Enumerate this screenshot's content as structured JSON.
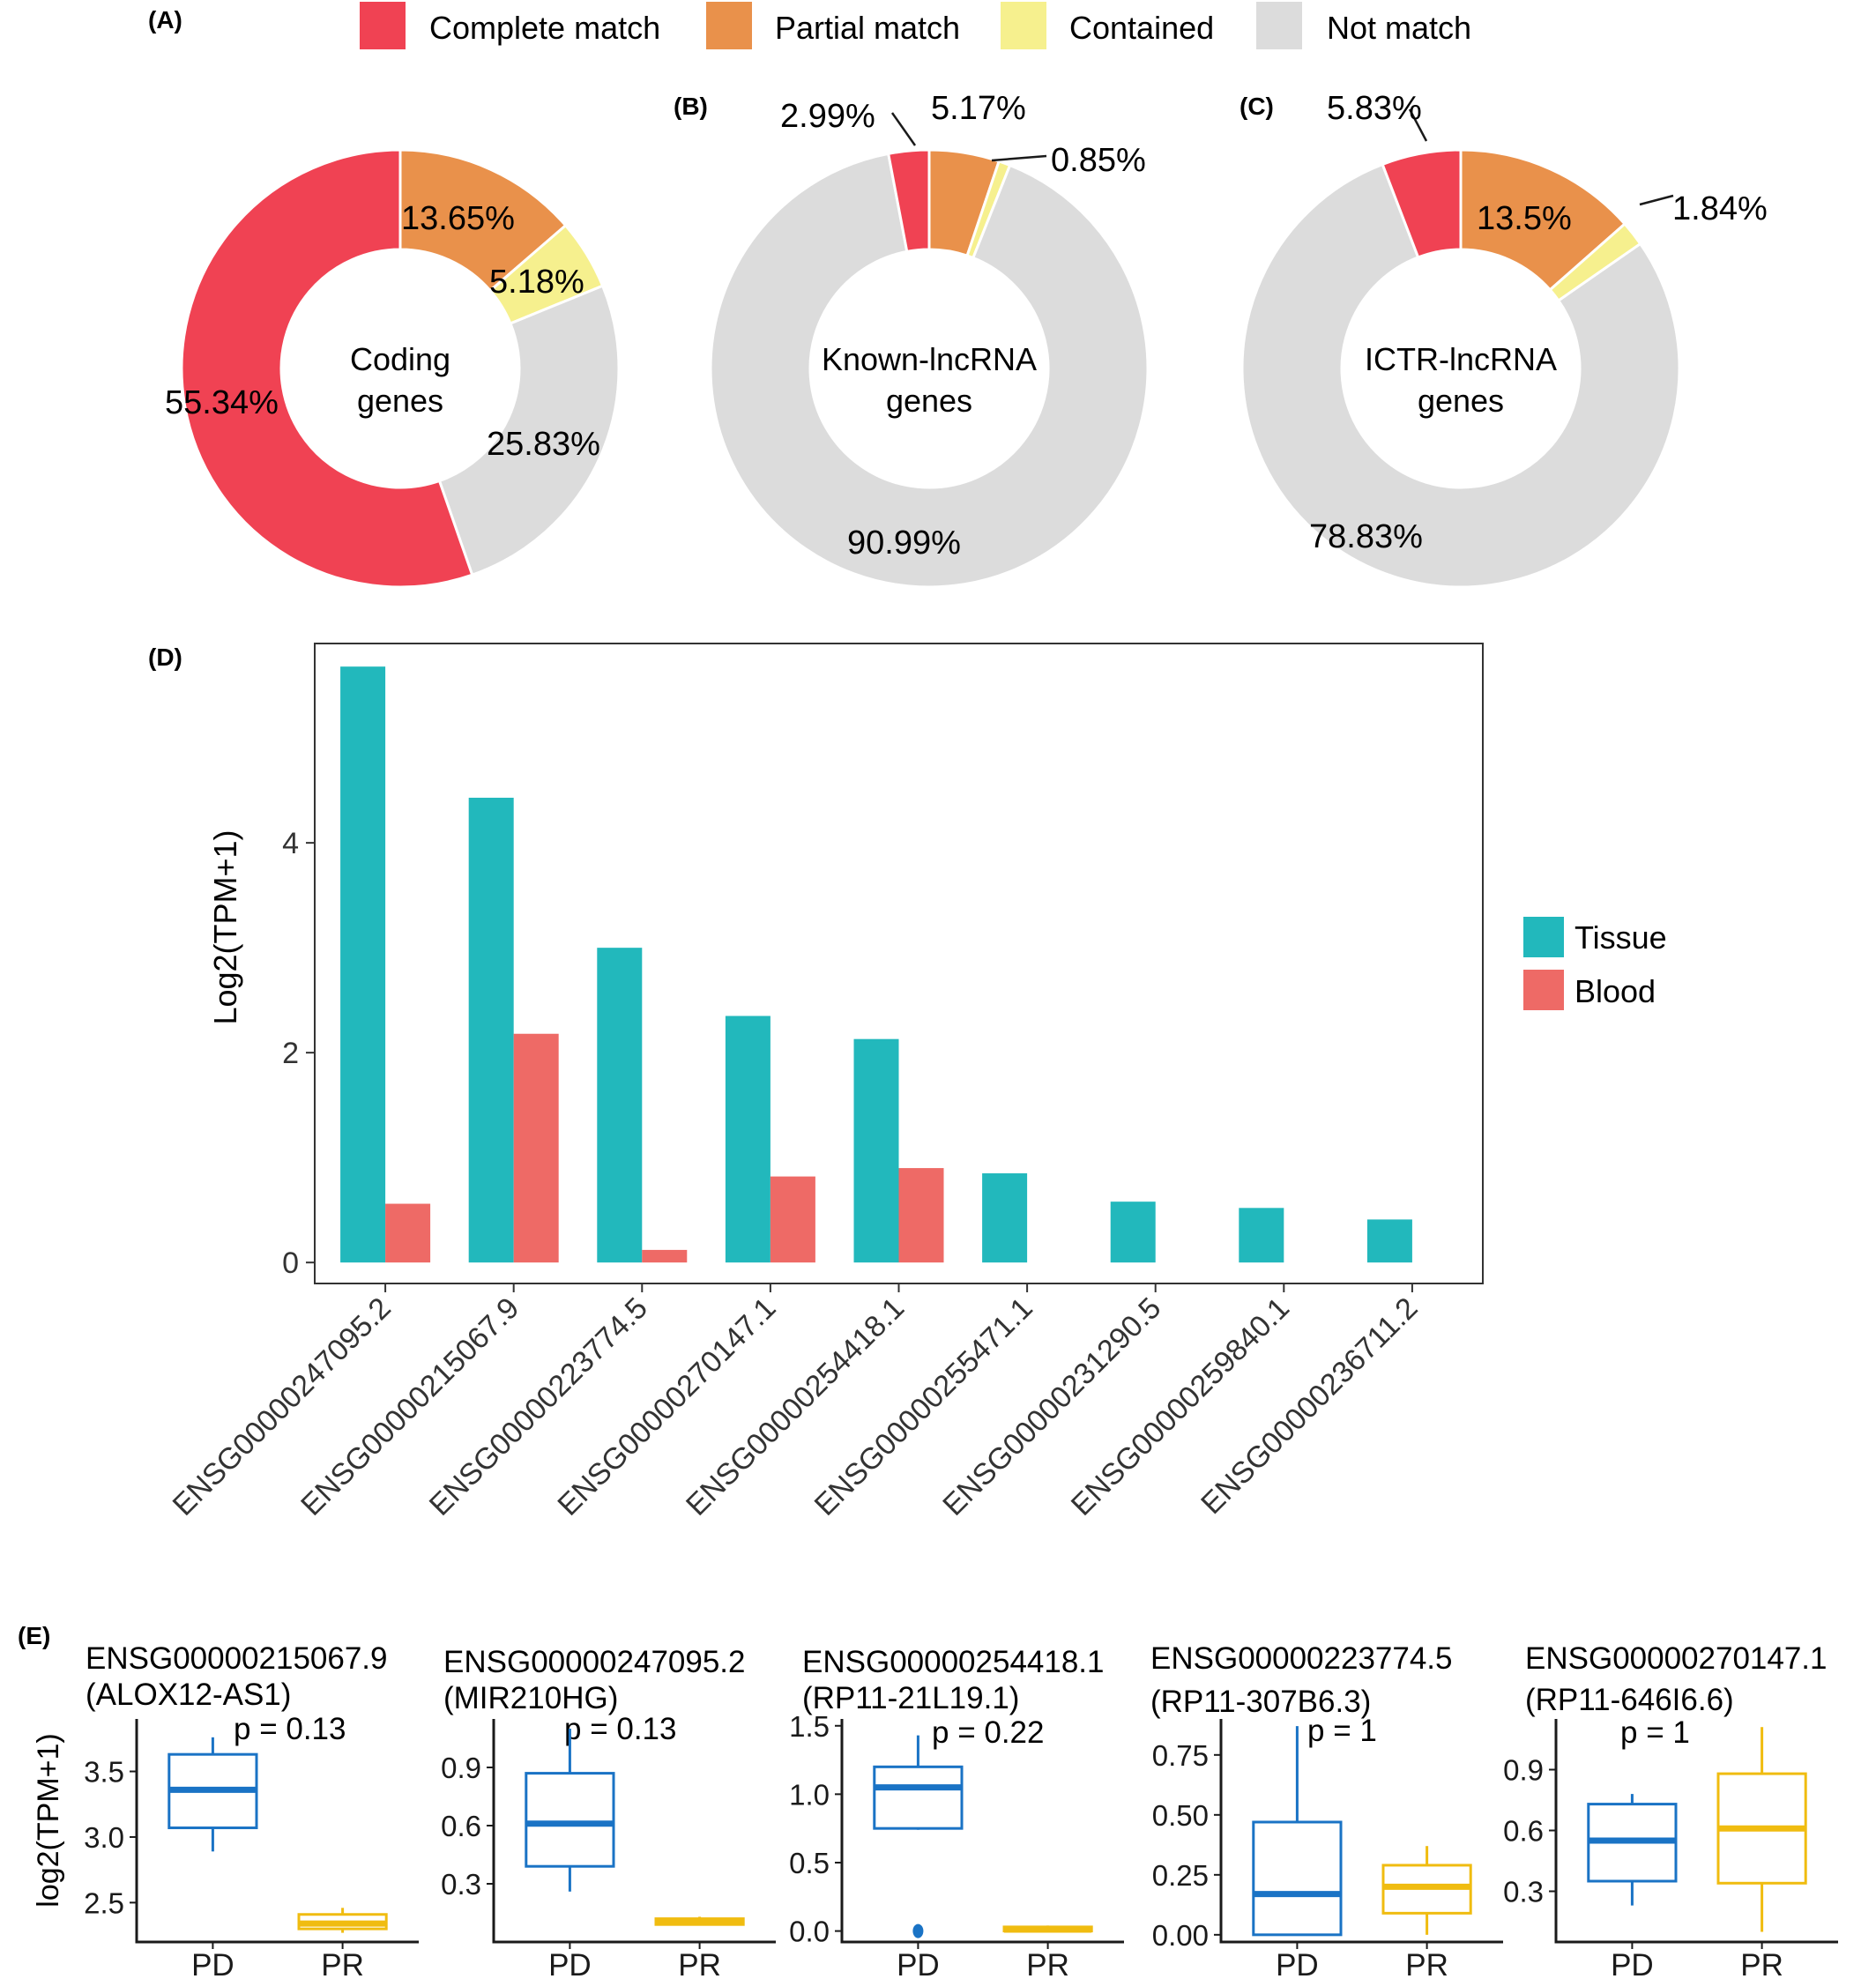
{
  "colors": {
    "complete": "#F04253",
    "partial": "#E9914B",
    "contained": "#F6F08E",
    "notmatch": "#DCDCDC",
    "tissue": "#22B8BC",
    "blood": "#EE6A66",
    "pd": "#1A73C5",
    "pr": "#F0BC10"
  },
  "panel_labels": {
    "a": "(A)",
    "b": "(B)",
    "c": "(C)",
    "d": "(D)",
    "e": "(E)"
  },
  "legend": [
    {
      "label": "Complete match",
      "color_key": "complete"
    },
    {
      "label": "Partial match",
      "color_key": "partial"
    },
    {
      "label": "Contained",
      "color_key": "contained"
    },
    {
      "label": "Not match",
      "color_key": "notmatch"
    }
  ],
  "chart_data": [
    {
      "panel": "A",
      "type": "pie",
      "center_label": [
        "Coding",
        "genes"
      ],
      "slices": [
        {
          "category": "Partial match",
          "value": 13.65,
          "label": "13.65%"
        },
        {
          "category": "Contained",
          "value": 5.18,
          "label": "5.18%"
        },
        {
          "category": "Not match",
          "value": 25.83,
          "label": "25.83%"
        },
        {
          "category": "Complete match",
          "value": 55.34,
          "label": "55.34%"
        }
      ]
    },
    {
      "panel": "B",
      "type": "pie",
      "center_label": [
        "Known-lncRNA",
        "genes"
      ],
      "slices": [
        {
          "category": "Partial match",
          "value": 5.17,
          "label": "5.17%"
        },
        {
          "category": "Contained",
          "value": 0.85,
          "label": "0.85%"
        },
        {
          "category": "Not match",
          "value": 90.99,
          "label": "90.99%"
        },
        {
          "category": "Complete match",
          "value": 2.99,
          "label": "2.99%"
        }
      ]
    },
    {
      "panel": "C",
      "type": "pie",
      "center_label": [
        "ICTR-lncRNA",
        "genes"
      ],
      "slices": [
        {
          "category": "Partial match",
          "value": 13.5,
          "label": "13.5%"
        },
        {
          "category": "Contained",
          "value": 1.84,
          "label": "1.84%"
        },
        {
          "category": "Not match",
          "value": 78.83,
          "label": "78.83%"
        },
        {
          "category": "Complete match",
          "value": 5.83,
          "label": "5.83%"
        }
      ]
    },
    {
      "panel": "D",
      "type": "bar",
      "ylabel": "Log2(TPM+1)",
      "ylim": [
        -0.2,
        5.9
      ],
      "yticks": [
        0,
        2,
        4
      ],
      "categories": [
        "ENSG00000247095.2",
        "ENSG00000215067.9",
        "ENSG00000223774.5",
        "ENSG00000270147.1",
        "ENSG00000254418.1",
        "ENSG00000255471.1",
        "ENSG00000231290.5",
        "ENSG00000259840.1",
        "ENSG00000236711.2"
      ],
      "series": [
        {
          "name": "Tissue",
          "color_key": "tissue",
          "values": [
            5.68,
            4.43,
            3.0,
            2.35,
            2.13,
            0.85,
            0.58,
            0.52,
            0.41
          ]
        },
        {
          "name": "Blood",
          "color_key": "blood",
          "values": [
            0.56,
            2.18,
            0.12,
            0.82,
            0.9,
            0.0,
            0.0,
            0.0,
            0.0
          ]
        }
      ],
      "legend": [
        "Tissue",
        "Blood"
      ]
    },
    {
      "panel": "E",
      "type": "box",
      "ylabel": "log2(TPM+1)",
      "groups": [
        "PD",
        "PR"
      ],
      "subplots": [
        {
          "title": [
            "ENSG00000215067.9",
            "(ALOX12-AS1)"
          ],
          "pvalue": "p = 0.13",
          "ylim": [
            2.2,
            3.9
          ],
          "yticks": [
            2.5,
            3.0,
            3.5
          ],
          "ytick_labels": [
            "2.5",
            "3.0",
            "3.5"
          ],
          "boxes": [
            {
              "group": "PD",
              "min": 2.89,
              "q1": 3.07,
              "median": 3.36,
              "q3": 3.63,
              "max": 3.76,
              "outliers": []
            },
            {
              "group": "PR",
              "min": 2.27,
              "q1": 2.3,
              "median": 2.34,
              "q3": 2.41,
              "max": 2.46,
              "outliers": []
            }
          ]
        },
        {
          "title": [
            "ENSG00000247095.2",
            "(MIR210HG)"
          ],
          "pvalue": "p = 0.13",
          "ylim": [
            0.0,
            1.15
          ],
          "yticks": [
            0.3,
            0.6,
            0.9
          ],
          "ytick_labels": [
            "0.3",
            "0.6",
            "0.9"
          ],
          "boxes": [
            {
              "group": "PD",
              "min": 0.26,
              "q1": 0.39,
              "median": 0.61,
              "q3": 0.87,
              "max": 1.1,
              "outliers": []
            },
            {
              "group": "PR",
              "min": 0.09,
              "q1": 0.09,
              "median": 0.1,
              "q3": 0.12,
              "max": 0.13,
              "outliers": []
            }
          ]
        },
        {
          "title": [
            "ENSG00000254418.1",
            "(RP11-21L19.1)"
          ],
          "pvalue": "p = 0.22",
          "ylim": [
            -0.08,
            1.55
          ],
          "yticks": [
            0.0,
            0.5,
            1.0,
            1.5
          ],
          "ytick_labels": [
            "0.0",
            "0.5",
            "1.0",
            "1.5"
          ],
          "boxes": [
            {
              "group": "PD",
              "min": 0.74,
              "q1": 0.75,
              "median": 1.05,
              "q3": 1.2,
              "max": 1.43,
              "outliers": [
                0.0
              ]
            },
            {
              "group": "PR",
              "min": 0.0,
              "q1": 0.0,
              "median": 0.01,
              "q3": 0.03,
              "max": 0.04,
              "outliers": []
            }
          ]
        },
        {
          "title": [
            "ENSG00000223774.5",
            "(RP11-307B6.3)"
          ],
          "pvalue": "p = 1",
          "ylim": [
            -0.03,
            0.9
          ],
          "yticks": [
            0.0,
            0.25,
            0.5,
            0.75
          ],
          "ytick_labels": [
            "0.00",
            "0.25",
            "0.50",
            "0.75"
          ],
          "boxes": [
            {
              "group": "PD",
              "min": 0.0,
              "q1": 0.0,
              "median": 0.17,
              "q3": 0.47,
              "max": 0.87,
              "outliers": []
            },
            {
              "group": "PR",
              "min": 0.0,
              "q1": 0.09,
              "median": 0.2,
              "q3": 0.29,
              "max": 0.37,
              "outliers": []
            }
          ]
        },
        {
          "title": [
            "ENSG00000270147.1",
            "(RP11-646I6.6)"
          ],
          "pvalue": "p = 1",
          "ylim": [
            0.05,
            1.15
          ],
          "yticks": [
            0.3,
            0.6,
            0.9
          ],
          "ytick_labels": [
            "0.3",
            "0.6",
            "0.9"
          ],
          "boxes": [
            {
              "group": "PD",
              "min": 0.23,
              "q1": 0.35,
              "median": 0.55,
              "q3": 0.73,
              "max": 0.78,
              "outliers": []
            },
            {
              "group": "PR",
              "min": 0.1,
              "q1": 0.34,
              "median": 0.61,
              "q3": 0.88,
              "max": 1.11,
              "outliers": []
            }
          ]
        }
      ]
    }
  ]
}
